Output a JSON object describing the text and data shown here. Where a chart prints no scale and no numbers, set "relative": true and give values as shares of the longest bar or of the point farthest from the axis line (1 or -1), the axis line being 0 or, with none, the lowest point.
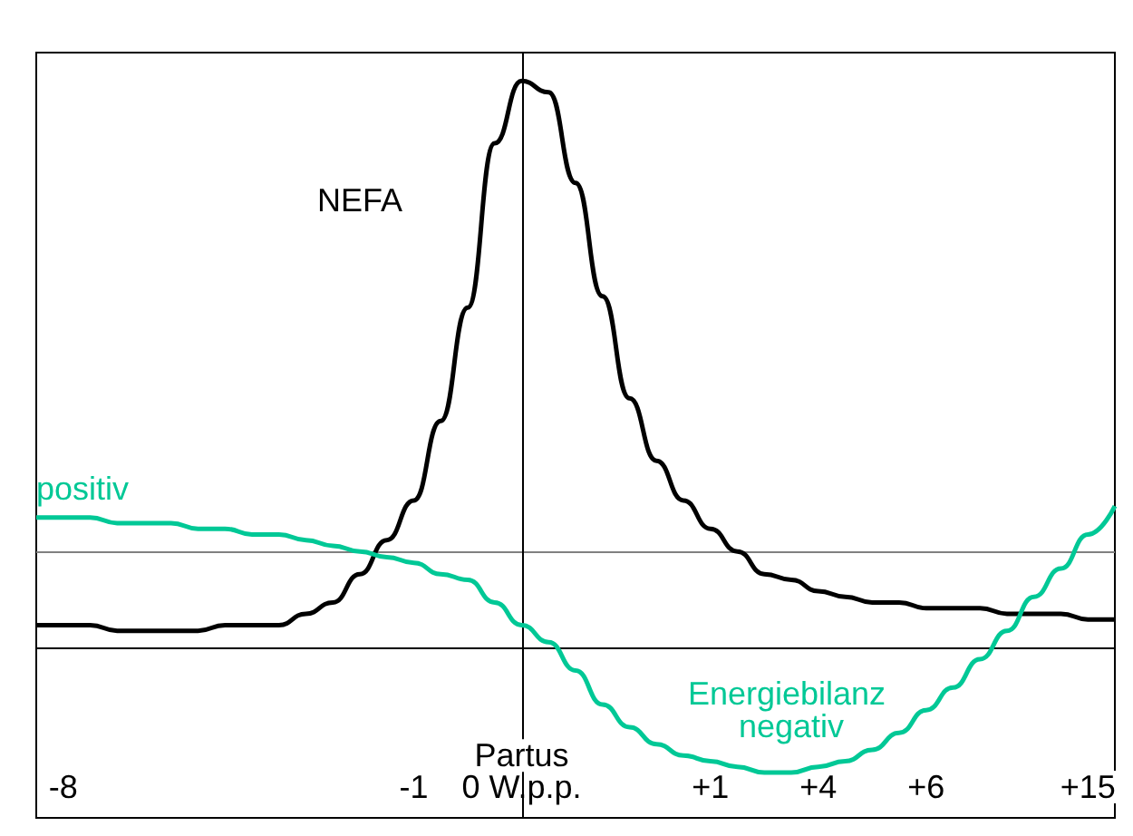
{
  "chart_data": {
    "type": "line",
    "relative": true,
    "categories": [
      null,
      "-8",
      null,
      null,
      null,
      null,
      null,
      null,
      null,
      null,
      null,
      null,
      null,
      null,
      "-1",
      null,
      null,
      null,
      "0 W.p.p.",
      null,
      null,
      null,
      null,
      null,
      null,
      "+1",
      null,
      null,
      null,
      "+4",
      null,
      null,
      null,
      "+6",
      null,
      null,
      null,
      null,
      null,
      "+15",
      null
    ],
    "series": [
      {
        "name": "NEFA",
        "color": "#000000",
        "values": [
          0.04,
          0.04,
          0.04,
          0.03,
          0.03,
          0.03,
          0.03,
          0.04,
          0.04,
          0.04,
          0.06,
          0.08,
          0.13,
          0.19,
          0.26,
          0.4,
          0.6,
          0.89,
          1,
          0.98,
          0.82,
          0.62,
          0.44,
          0.33,
          0.26,
          0.21,
          0.17,
          0.13,
          0.12,
          0.1,
          0.09,
          0.08,
          0.08,
          0.07,
          0.07,
          0.07,
          0.06,
          0.06,
          0.06,
          0.05,
          0.05
        ]
      },
      {
        "color": "#00c896",
        "values": [
          0.23,
          0.23,
          0.23,
          0.22,
          0.22,
          0.22,
          0.21,
          0.21,
          0.2,
          0.2,
          0.19,
          0.18,
          0.17,
          0.16,
          0.15,
          0.13,
          0.12,
          0.08,
          0.04,
          0.01,
          -0.04,
          -0.1,
          -0.14,
          -0.17,
          -0.19,
          -0.2,
          -0.21,
          -0.22,
          -0.22,
          -0.21,
          -0.2,
          -0.18,
          -0.15,
          -0.11,
          -0.07,
          -0.02,
          0.03,
          0.09,
          0.14,
          0.2,
          0.25
        ]
      }
    ],
    "ref_lines": [
      {
        "axis": "y",
        "value": 0.17,
        "color": "#808080"
      },
      {
        "axis": "y",
        "value": 0,
        "color": "#000000"
      },
      {
        "axis": "x",
        "value": "0 W.p.p.",
        "label": "Partus",
        "color": "#000000"
      }
    ],
    "annotations": [
      "positiv",
      "Energiebilanz negativ"
    ],
    "grid": false,
    "legend": false,
    "line_style": "solid"
  }
}
